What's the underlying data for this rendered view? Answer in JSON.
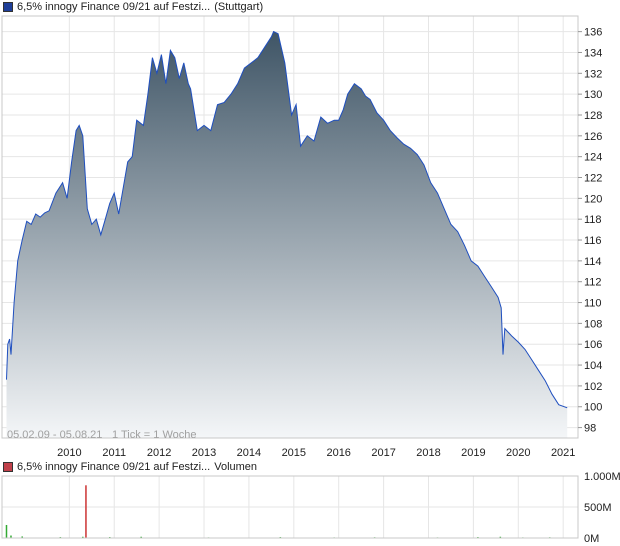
{
  "price_legend": {
    "label": "6,5% innogy Finance 09/21 auf Festzi...",
    "exchange": "(Stuttgart)",
    "color": "#1f3f99"
  },
  "volume_legend": {
    "label": "6,5% innogy Finance 09/21 auf Festzi...",
    "suffix": "Volumen",
    "color": "#c0404a"
  },
  "footer": {
    "range": "05.02.09 - 05.08.21",
    "tick_info": "1 Tick = 1 Woche"
  },
  "colors": {
    "line": "#1f4fbf",
    "area_top": "#3f5566",
    "area_bottom": "#f4f6f8",
    "grid": "#e6e6e6",
    "volume_green": "#33aa33",
    "volume_red": "#cc3333"
  },
  "chart_data": [
    {
      "type": "area",
      "xlabel": "",
      "ylabel": "",
      "ylim": [
        97,
        137.5
      ],
      "x_ticks": [
        "2010",
        "2011",
        "2012",
        "2013",
        "2014",
        "2015",
        "2016",
        "2017",
        "2018",
        "2019",
        "2020",
        "2021"
      ],
      "y_ticks": [
        98,
        100,
        102,
        104,
        106,
        108,
        110,
        112,
        114,
        116,
        118,
        120,
        122,
        124,
        126,
        128,
        130,
        132,
        134,
        136
      ],
      "grid": true,
      "series": [
        {
          "x": [
            2009.1,
            2009.13,
            2009.17,
            2009.2,
            2009.27,
            2009.35,
            2009.45,
            2009.55,
            2009.65,
            2009.75,
            2009.85,
            2009.95,
            2010.05,
            2010.2,
            2010.35,
            2010.45,
            2010.55,
            2010.65,
            2010.72,
            2010.8,
            2010.9,
            2011.0,
            2011.1,
            2011.2,
            2011.3,
            2011.4,
            2011.5,
            2011.6,
            2011.7,
            2011.8,
            2011.9,
            2012.0,
            2012.15,
            2012.25,
            2012.35,
            2012.45,
            2012.55,
            2012.65,
            2012.75,
            2012.85,
            2012.95,
            2013.05,
            2013.15,
            2013.2,
            2013.35,
            2013.5,
            2013.65,
            2013.8,
            2013.95,
            2014.1,
            2014.25,
            2014.4,
            2014.55,
            2014.7,
            2014.85,
            2015.0,
            2015.05,
            2015.15,
            2015.3,
            2015.45,
            2015.55,
            2015.65,
            2015.8,
            2015.95,
            2016.1,
            2016.25,
            2016.4,
            2016.5,
            2016.6,
            2016.7,
            2016.85,
            2017.0,
            2017.1,
            2017.2,
            2017.35,
            2017.5,
            2017.65,
            2017.8,
            2017.95,
            2018.1,
            2018.25,
            2018.4,
            2018.55,
            2018.7,
            2018.85,
            2019.0,
            2019.15,
            2019.3,
            2019.45,
            2019.6,
            2019.75,
            2019.9,
            2020.05,
            2020.12,
            2020.16,
            2020.2,
            2020.35,
            2020.5,
            2020.65,
            2020.8,
            2020.95,
            2021.1,
            2021.25,
            2021.4,
            2021.59
          ],
          "values": [
            102.6,
            106.0,
            106.5,
            105.0,
            110.0,
            114.0,
            116.0,
            117.8,
            117.5,
            118.5,
            118.2,
            118.6,
            118.8,
            120.5,
            121.5,
            120.0,
            123.5,
            126.5,
            127.0,
            126.0,
            119.0,
            117.5,
            118.0,
            116.5,
            118.0,
            119.5,
            120.5,
            118.5,
            121.0,
            123.5,
            124.0,
            127.5,
            127.0,
            130.0,
            133.5,
            132.0,
            133.8,
            131.0,
            134.2,
            133.5,
            131.5,
            133.0,
            131.0,
            130.5,
            126.5,
            127.0,
            126.5,
            129.0,
            129.2,
            130.0,
            131.0,
            132.5,
            133.0,
            133.5,
            134.5,
            135.5,
            136.0,
            135.8,
            133.0,
            128.0,
            129.0,
            125.0,
            126.0,
            125.5,
            127.8,
            127.2,
            127.5,
            127.5,
            128.5,
            130.0,
            131.0,
            130.5,
            129.8,
            129.5,
            128.2,
            127.5,
            126.5,
            125.8,
            125.2,
            124.8,
            124.2,
            123.2,
            121.5,
            120.5,
            119.0,
            117.5,
            116.8,
            115.5,
            114.0,
            113.5,
            112.5,
            111.5,
            110.5,
            109.5,
            105.0,
            107.5,
            106.8,
            106.2,
            105.5,
            104.5,
            103.5,
            102.5,
            101.2,
            100.2,
            99.9
          ]
        }
      ]
    },
    {
      "type": "bar",
      "xlabel": "",
      "ylabel": "Volumen",
      "ylim": [
        0,
        1000
      ],
      "y_ticks": [
        "1.000M",
        "500M",
        "0M"
      ],
      "series": [
        {
          "x": [
            2009.1,
            2009.2,
            2009.45,
            2010.3,
            2010.8,
            2010.87,
            2011.4,
            2012.1,
            2013.6,
            2015.2,
            2016.4,
            2017.3,
            2018.7,
            2019.6,
            2020.1,
            2020.6,
            2021.2
          ],
          "values": [
            210,
            40,
            25,
            15,
            20,
            850,
            15,
            20,
            10,
            15,
            10,
            12,
            10,
            15,
            20,
            10,
            12
          ]
        }
      ]
    }
  ]
}
